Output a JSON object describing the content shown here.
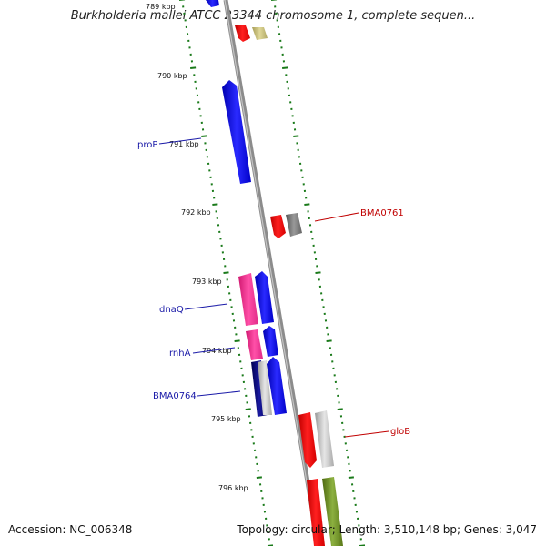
{
  "title": "Burkholderia mallei ATCC 23344 chromosome 1, complete sequen...",
  "footer": {
    "accession": "Accession: NC_006348",
    "summary": "Topology: circular; Length: 3,510,148 bp; Genes: 3,047"
  },
  "ticks": [
    "789 kbp",
    "790 kbp",
    "791 kbp",
    "792 kbp",
    "793 kbp",
    "794 kbp",
    "795 kbp",
    "796 kbp"
  ],
  "gene_labels": {
    "proP": "proP",
    "BMA0761": "BMA0761",
    "dnaQ": "dnaQ",
    "rnhA": "rnhA",
    "BMA0764": "BMA0764",
    "gloB": "gloB"
  },
  "colors": {
    "backbone": "#8c8c8c",
    "tick": "#1a7a1a",
    "blue": "#0000e6",
    "red": "#ee0000",
    "magenta": "#ee2a8a",
    "gray": "#777777",
    "light_gray": "#bbbbbb",
    "navy": "#00006e",
    "olive": "#6e8c1e",
    "khaki": "#c8c07a"
  }
}
